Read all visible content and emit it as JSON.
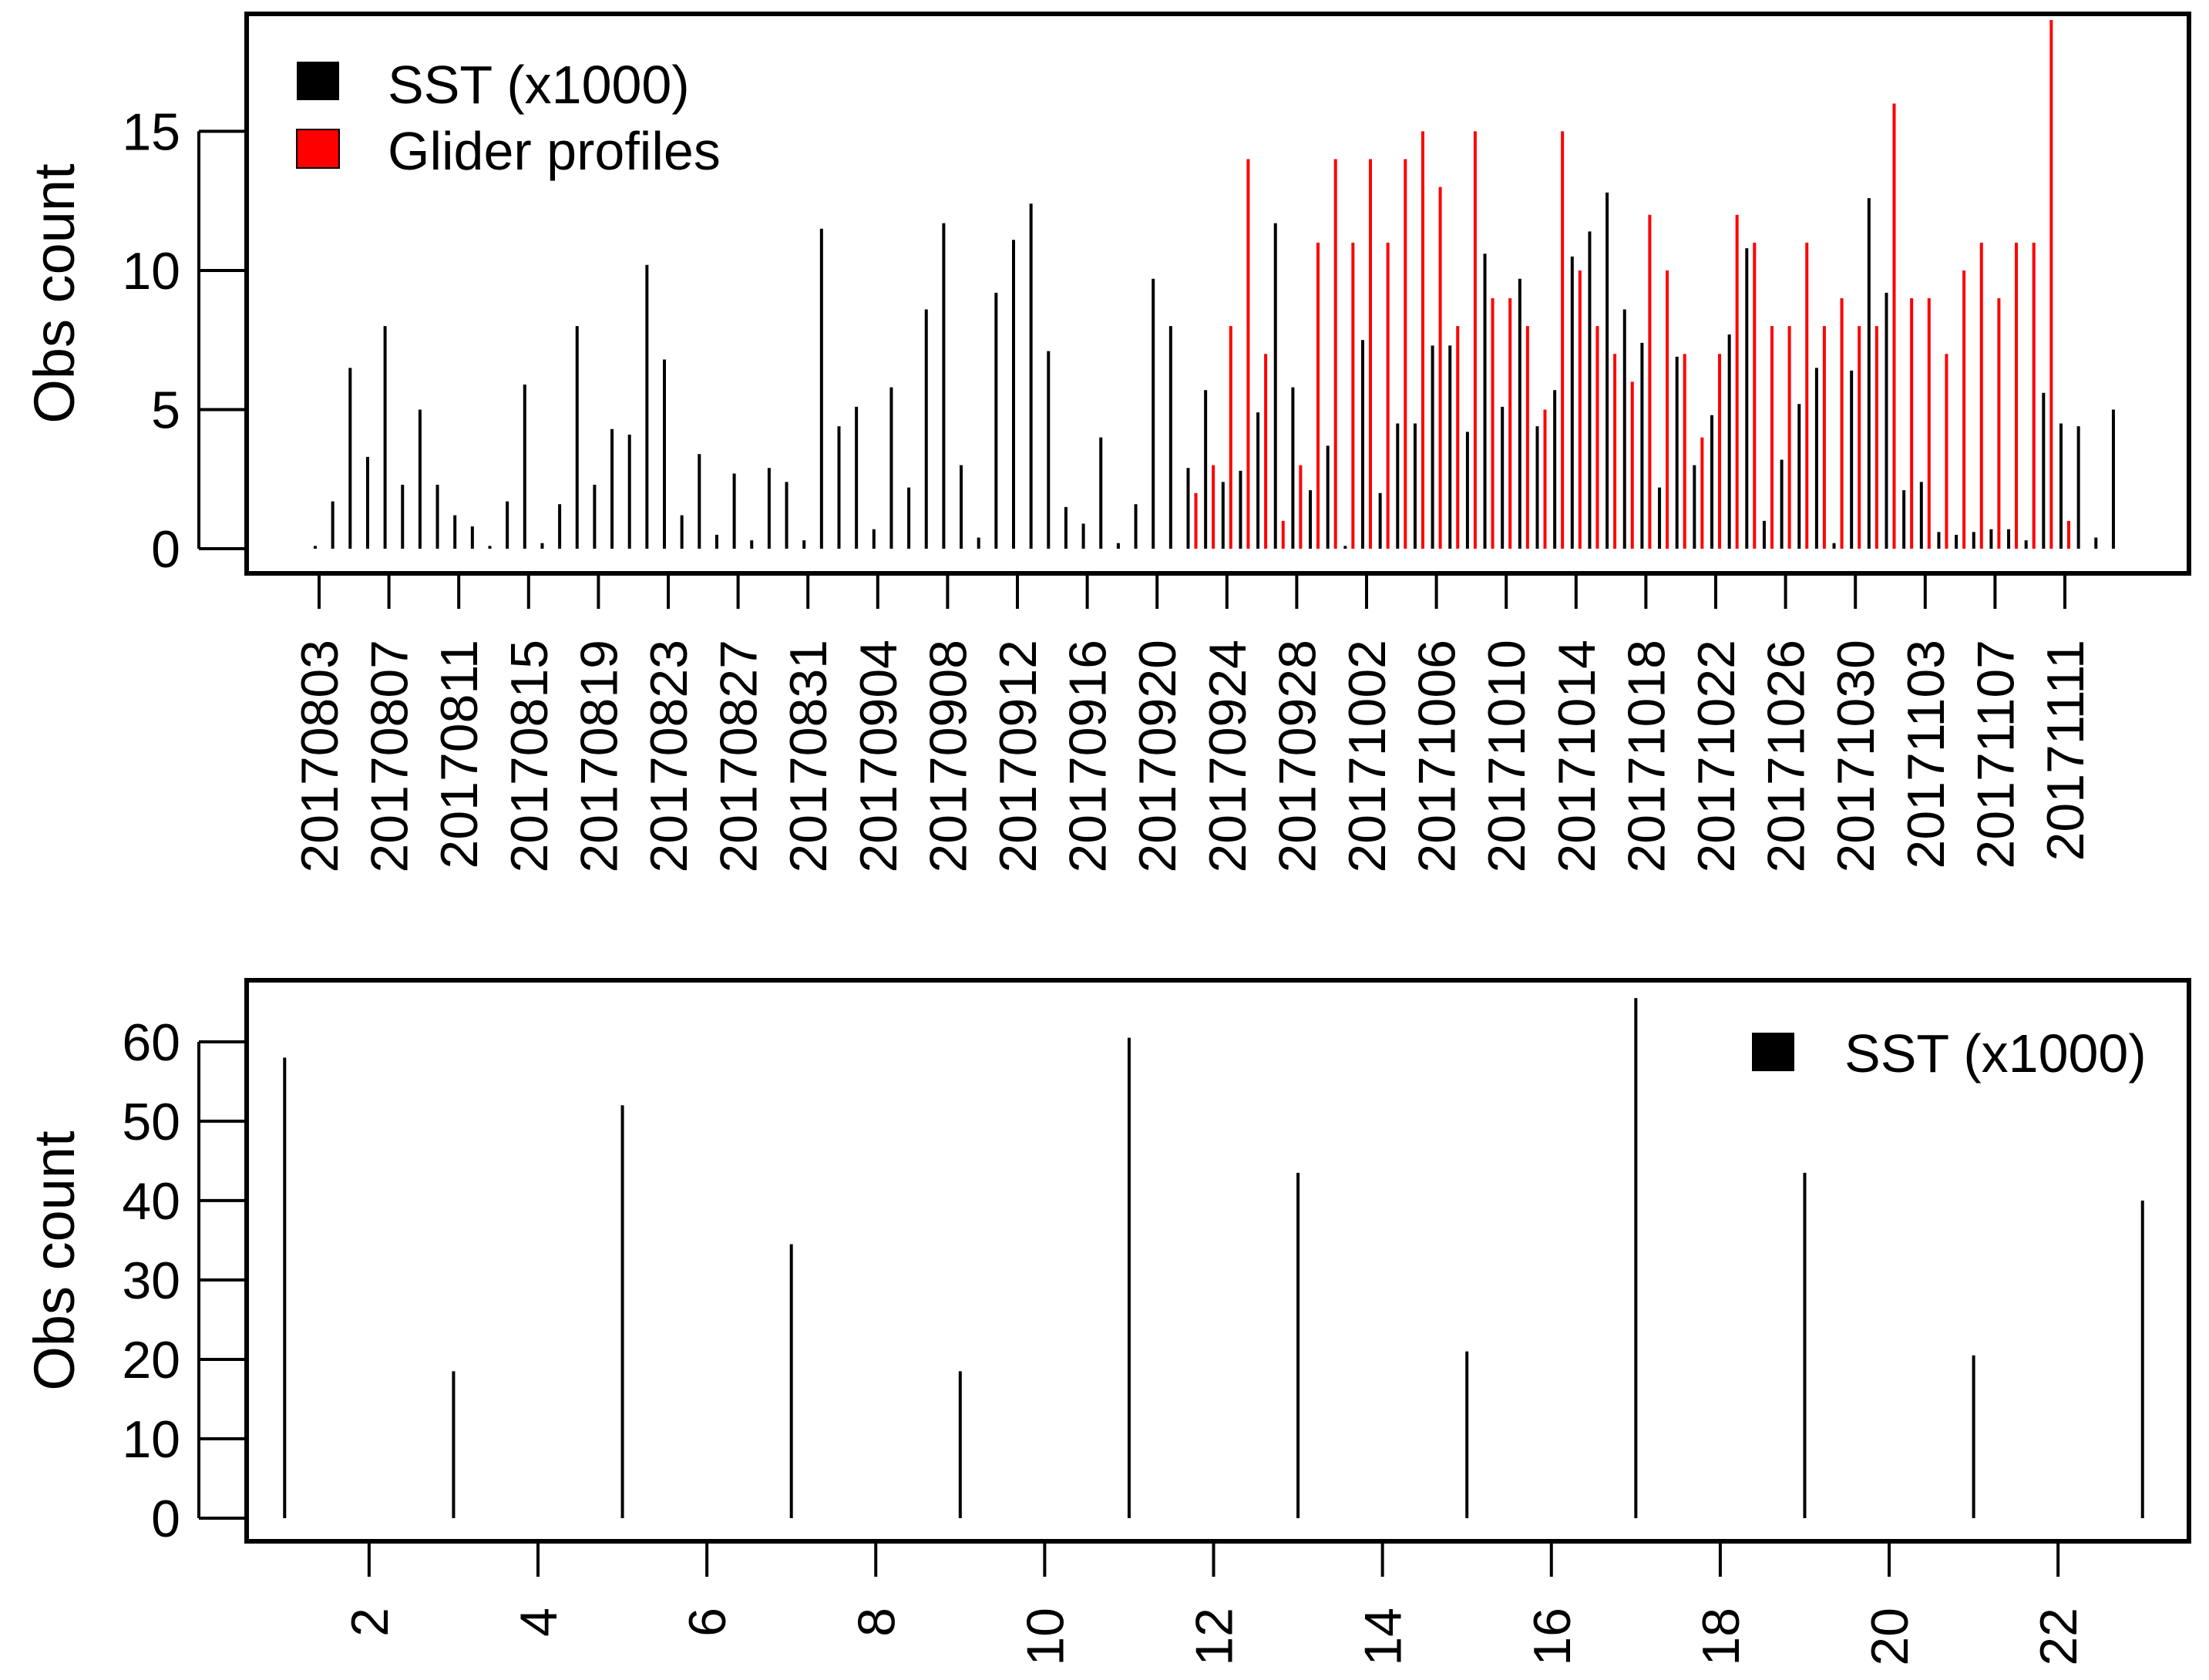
{
  "colors": {
    "sst": "#000000",
    "glider": "#ff0000",
    "frame": "#000000",
    "background": "#ffffff"
  },
  "chart_data": [
    {
      "type": "bar",
      "subtype": "histogram-spikes",
      "title": "",
      "xlabel": "",
      "ylabel": "Obs count",
      "ylim": [
        0,
        19
      ],
      "y_ticks": [
        0,
        5,
        10,
        15
      ],
      "x_tick_labels": [
        "20170803",
        "20170807",
        "20170811",
        "20170815",
        "20170819",
        "20170823",
        "20170827",
        "20170831",
        "20170904",
        "20170908",
        "20170912",
        "20170916",
        "20170920",
        "20170924",
        "20170928",
        "20171002",
        "20171006",
        "20171010",
        "20171014",
        "20171018",
        "20171022",
        "20171026",
        "20171030",
        "20171103",
        "20171107",
        "20171111"
      ],
      "legend": {
        "position": "top-left",
        "entries": [
          {
            "label": "SST (x1000)",
            "color": "#000000"
          },
          {
            "label": "Glider profiles",
            "color": "#ff0000"
          }
        ]
      },
      "day_start": "20170803",
      "series": [
        {
          "name": "SST (x1000)",
          "color": "#000000",
          "values": [
            0.1,
            1.7,
            6.5,
            3.3,
            8.0,
            2.3,
            5.0,
            2.3,
            1.2,
            0.8,
            0.1,
            1.7,
            5.9,
            0.2,
            1.6,
            8.0,
            2.3,
            4.3,
            4.1,
            10.2,
            6.8,
            1.2,
            3.4,
            0.5,
            2.7,
            0.3,
            2.9,
            2.4,
            0.3,
            11.5,
            4.4,
            5.1,
            0.7,
            5.8,
            2.2,
            8.6,
            11.7,
            3.0,
            0.4,
            9.2,
            11.1,
            12.4,
            7.1,
            1.5,
            0.9,
            4.0,
            0.2,
            1.6,
            9.7,
            8.0,
            2.9,
            5.7,
            2.4,
            2.8,
            4.9,
            11.7,
            5.8,
            2.1,
            3.7,
            0.1,
            7.5,
            2.0,
            4.5,
            4.5,
            7.3,
            7.3,
            4.2,
            10.6,
            5.1,
            9.7,
            4.4,
            5.7,
            10.5,
            11.4,
            12.8,
            8.6,
            7.4,
            2.2,
            6.9,
            3.0,
            4.8,
            7.7,
            10.8,
            1.0,
            3.2,
            5.2,
            6.5,
            0.2,
            6.4,
            12.6,
            9.2,
            2.1,
            2.4,
            0.6,
            0.5,
            0.6,
            0.7,
            0.7,
            0.3,
            5.6,
            4.5,
            4.4,
            0.4,
            5.0
          ]
        },
        {
          "name": "Glider profiles",
          "color": "#ff0000",
          "values": [
            0,
            0,
            0,
            0,
            0,
            0,
            0,
            0,
            0,
            0,
            0,
            0,
            0,
            0,
            0,
            0,
            0,
            0,
            0,
            0,
            0,
            0,
            0,
            0,
            0,
            0,
            0,
            0,
            0,
            0,
            0,
            0,
            0,
            0,
            0,
            0,
            0,
            0,
            0,
            0,
            0,
            0,
            0,
            0,
            0,
            0,
            0,
            0,
            0,
            0,
            2,
            3,
            8,
            14,
            7,
            1,
            3,
            11,
            14,
            11,
            14,
            11,
            14,
            15,
            13,
            8,
            15,
            9,
            9,
            8,
            5,
            15,
            10,
            8,
            7,
            6,
            12,
            10,
            7,
            4,
            7,
            12,
            11,
            8,
            8,
            11,
            8,
            9,
            8,
            8,
            16,
            9,
            9,
            7,
            10,
            11,
            9,
            11,
            11,
            19,
            1,
            0,
            0,
            0,
            0
          ]
        }
      ]
    },
    {
      "type": "bar",
      "subtype": "histogram-spikes",
      "title": "",
      "xlabel": "",
      "ylabel": "Obs count",
      "xlim": [
        0.55,
        23.55
      ],
      "ylim": [
        0,
        66
      ],
      "y_ticks": [
        0,
        10,
        20,
        30,
        40,
        50,
        60
      ],
      "x_ticks": [
        2,
        4,
        6,
        8,
        10,
        12,
        14,
        16,
        18,
        20,
        22
      ],
      "legend": {
        "position": "top-right",
        "entries": [
          {
            "label": "SST (x1000)",
            "color": "#000000"
          }
        ]
      },
      "series": [
        {
          "name": "SST (x1000)",
          "color": "#000000",
          "x": [
            1,
            3,
            5,
            7,
            9,
            11,
            13,
            15,
            17,
            19,
            21,
            23
          ],
          "values": [
            58,
            18.5,
            52,
            34.5,
            18.5,
            60.5,
            43.5,
            21,
            65.5,
            43.5,
            20.5,
            40
          ]
        }
      ]
    }
  ]
}
